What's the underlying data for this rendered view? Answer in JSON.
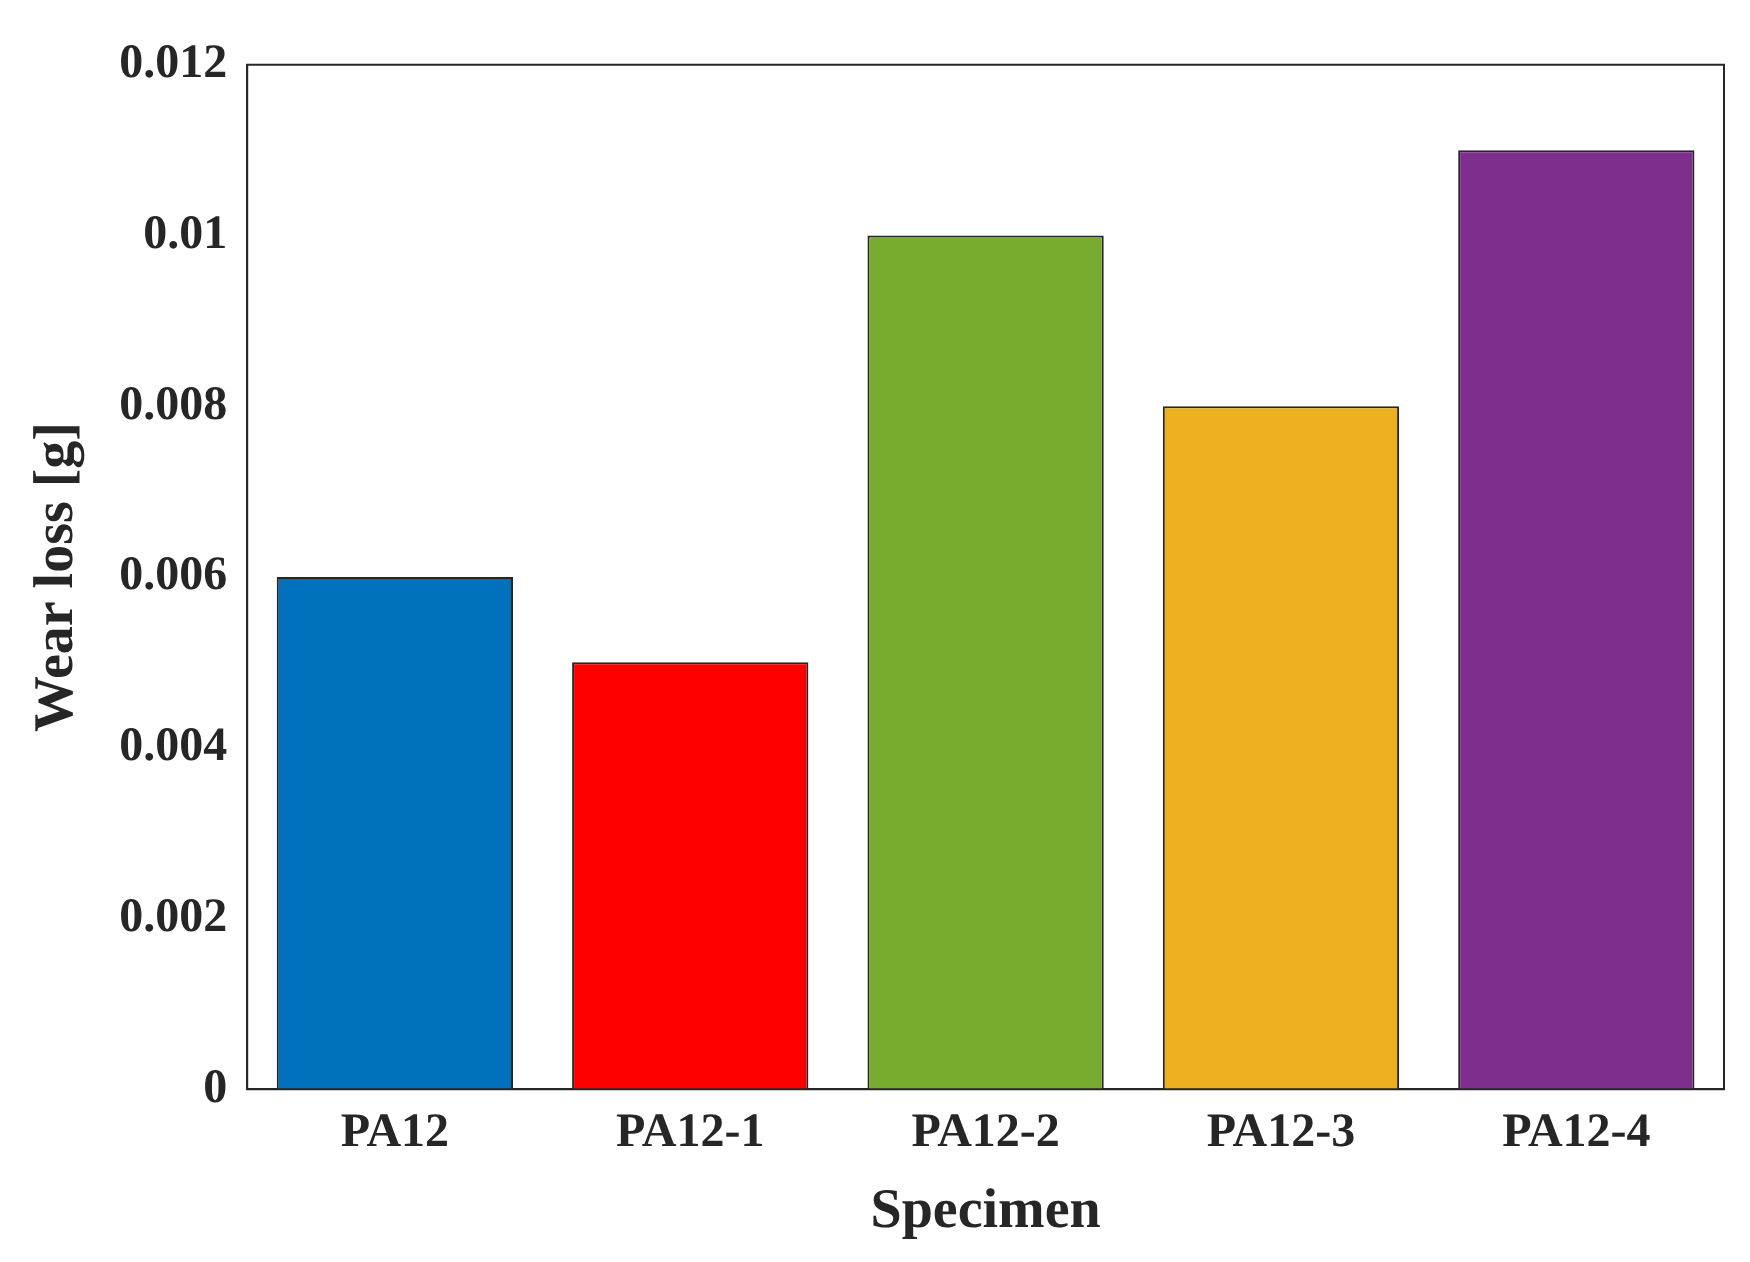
{
  "chart_data": {
    "type": "bar",
    "xlabel": "Specimen",
    "ylabel": "Wear loss [g]",
    "categories": [
      "PA12",
      "PA12-1",
      "PA12-2",
      "PA12-3",
      "PA12-4"
    ],
    "values": [
      0.006,
      0.005,
      0.01,
      0.008,
      0.011
    ],
    "colors": [
      "#0072bd",
      "#ff0000",
      "#77ac30",
      "#edb120",
      "#7e2f8e"
    ],
    "ylim": [
      0,
      0.012
    ],
    "yticks": [
      0,
      0.002,
      0.004,
      0.006,
      0.008,
      0.01,
      0.012
    ],
    "grid": false
  }
}
